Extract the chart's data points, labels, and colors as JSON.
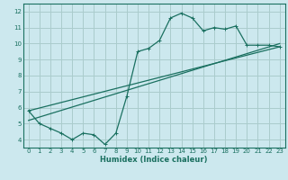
{
  "title": "",
  "xlabel": "Humidex (Indice chaleur)",
  "bg_color": "#cce8ee",
  "grid_color": "#aacccc",
  "line_color": "#1a7060",
  "xlim": [
    -0.5,
    23.5
  ],
  "ylim": [
    3.5,
    12.5
  ],
  "xticks": [
    0,
    1,
    2,
    3,
    4,
    5,
    6,
    7,
    8,
    9,
    10,
    11,
    12,
    13,
    14,
    15,
    16,
    17,
    18,
    19,
    20,
    21,
    22,
    23
  ],
  "yticks": [
    4,
    5,
    6,
    7,
    8,
    9,
    10,
    11,
    12
  ],
  "line1_x": [
    0,
    1,
    2,
    3,
    4,
    5,
    6,
    7,
    8,
    9,
    10,
    11,
    12,
    13,
    14,
    15,
    16,
    17,
    18,
    19,
    20,
    21,
    22,
    23
  ],
  "line1_y": [
    5.8,
    5.0,
    4.7,
    4.4,
    4.0,
    4.4,
    4.3,
    3.7,
    4.4,
    6.7,
    9.5,
    9.7,
    10.2,
    11.6,
    11.9,
    11.6,
    10.8,
    11.0,
    10.9,
    11.1,
    9.9,
    9.9,
    9.9,
    9.8
  ],
  "line2_x": [
    0,
    23
  ],
  "line2_y": [
    5.2,
    10.0
  ],
  "line3_x": [
    0,
    23
  ],
  "line3_y": [
    5.8,
    9.8
  ],
  "xlabel_fontsize": 6.0,
  "tick_fontsize": 5.0
}
